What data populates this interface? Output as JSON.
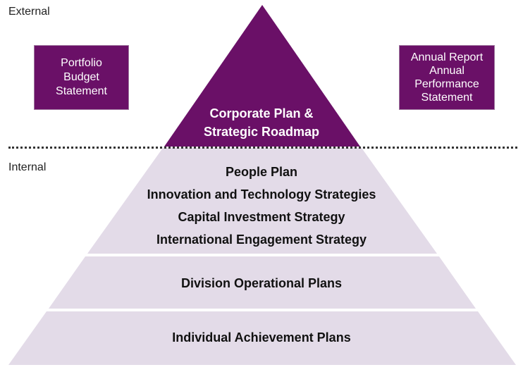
{
  "zones": {
    "external": "External",
    "internal": "Internal"
  },
  "left_box": {
    "lines": [
      "Portfolio",
      "Budget",
      "Statement"
    ]
  },
  "right_box": {
    "lines": [
      "Annual Report",
      "Annual",
      "Performance",
      "Statement"
    ]
  },
  "pyramid": {
    "apex": {
      "lines": [
        "Corporate Plan &",
        "Strategic Roadmap"
      ],
      "color": "#6a1067"
    },
    "tier2": {
      "lines": [
        "People Plan",
        "Innovation and Technology Strategies",
        "Capital Investment Strategy",
        "International Engagement Strategy"
      ]
    },
    "tier3": {
      "label": "Division Operational Plans"
    },
    "tier4": {
      "label": "Individual Achievement Plans"
    },
    "band_color": "#e3dbe8"
  }
}
